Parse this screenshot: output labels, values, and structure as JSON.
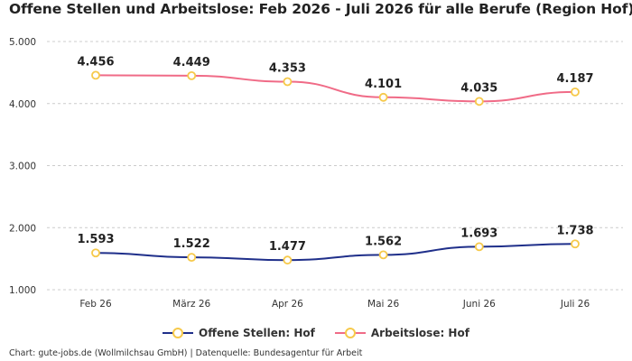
{
  "title": "Offene Stellen und Arbeitslose: Feb 2026 - Juli 2026 für alle Berufe (Region Hof)",
  "footer": "Chart: gute-jobs.de (Wollmilchsau GmbH) | Datenquelle: Bundesagentur für Arbeit",
  "colors": {
    "offene_stellen": "#1f2f8a",
    "arbeitslose": "#f06b87",
    "marker_border": "#f6c94a",
    "grid": "#cccccc"
  },
  "chart_data": {
    "type": "line",
    "categories": [
      "Feb 26",
      "März 26",
      "Apr 26",
      "Mai 26",
      "Juni 26",
      "Juli 26"
    ],
    "y_ticks": [
      "1.000",
      "2.000",
      "3.000",
      "4.000",
      "5.000"
    ],
    "ylim": [
      1000,
      5000
    ],
    "grid": true,
    "legend_position": "bottom",
    "series": [
      {
        "name": "Offene Stellen: Hof",
        "values": [
          1593,
          1522,
          1477,
          1562,
          1693,
          1738
        ],
        "labels": [
          "1.593",
          "1.522",
          "1.477",
          "1.562",
          "1.693",
          "1.738"
        ]
      },
      {
        "name": "Arbeitslose: Hof",
        "values": [
          4456,
          4449,
          4353,
          4101,
          4035,
          4187
        ],
        "labels": [
          "4.456",
          "4.449",
          "4.353",
          "4.101",
          "4.035",
          "4.187"
        ]
      }
    ]
  }
}
